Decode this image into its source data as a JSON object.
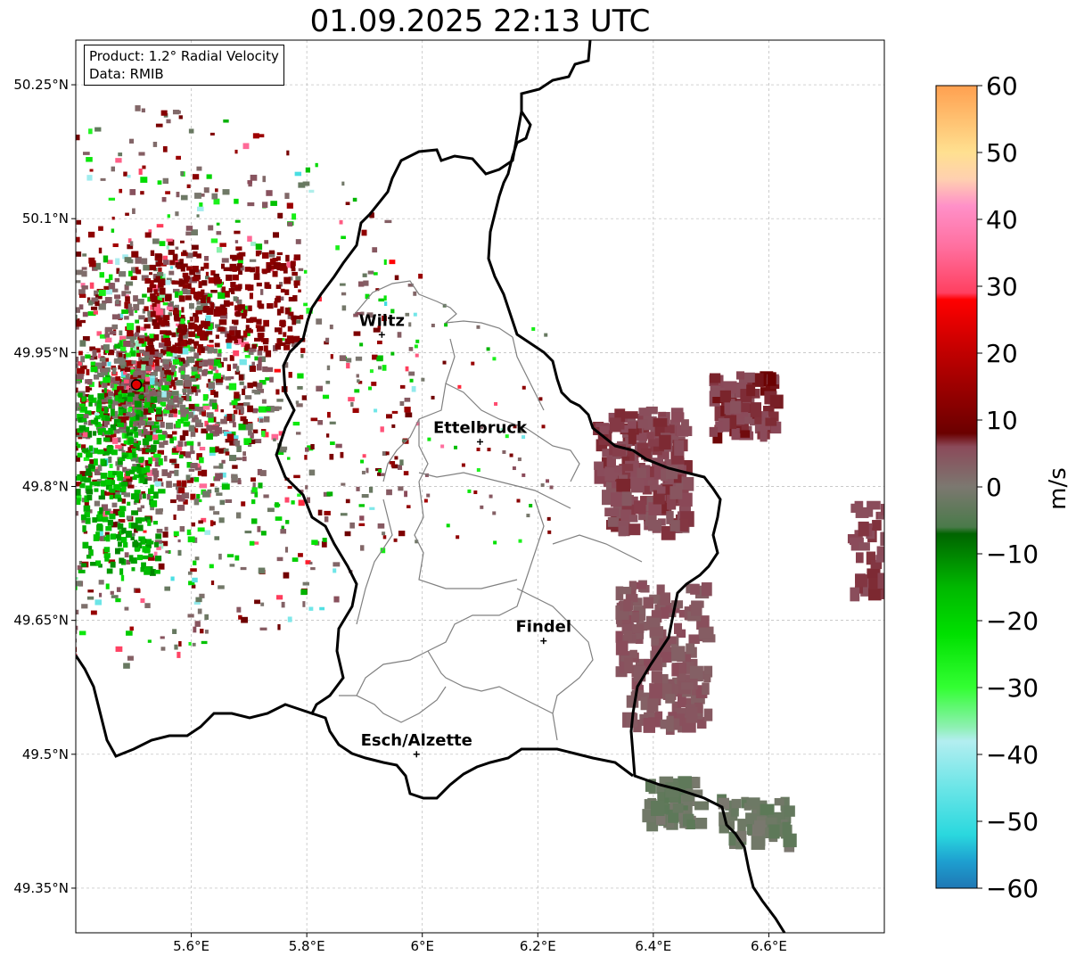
{
  "title": "01.09.2025 22:13 UTC",
  "info": {
    "product": "Product: 1.2° Radial Velocity",
    "data": "Data: RMIB"
  },
  "map": {
    "lon_range": [
      5.4,
      6.8
    ],
    "lat_range": [
      49.3,
      50.3
    ],
    "lon_ticks": [
      {
        "value": 5.6,
        "label": "5.6°E"
      },
      {
        "value": 5.8,
        "label": "5.8°E"
      },
      {
        "value": 6.0,
        "label": "6°E"
      },
      {
        "value": 6.2,
        "label": "6.2°E"
      },
      {
        "value": 6.4,
        "label": "6.4°E"
      },
      {
        "value": 6.6,
        "label": "6.6°E"
      }
    ],
    "lat_ticks": [
      {
        "value": 50.25,
        "label": "50.25°N"
      },
      {
        "value": 50.1,
        "label": "50.1°N"
      },
      {
        "value": 49.95,
        "label": "49.95°N"
      },
      {
        "value": 49.8,
        "label": "49.8°N"
      },
      {
        "value": 49.65,
        "label": "49.65°N"
      },
      {
        "value": 49.5,
        "label": "49.5°N"
      },
      {
        "value": 49.35,
        "label": "49.35°N"
      }
    ],
    "grid": true,
    "radar_site": {
      "lon": 5.505,
      "lat": 49.914
    },
    "cities": [
      {
        "name": "Wiltz",
        "lon": 5.93,
        "lat": 49.97
      },
      {
        "name": "Ettelbruck",
        "lon": 6.1,
        "lat": 49.85
      },
      {
        "name": "Findel",
        "lon": 6.21,
        "lat": 49.627
      },
      {
        "name": "Esch/Alzette",
        "lon": 5.99,
        "lat": 49.5
      }
    ]
  },
  "colorbar": {
    "label": "m/s",
    "vmin": -60,
    "vmax": 60,
    "ticks": [
      {
        "value": 60,
        "label": "60"
      },
      {
        "value": 50,
        "label": "50"
      },
      {
        "value": 40,
        "label": "40"
      },
      {
        "value": 30,
        "label": "30"
      },
      {
        "value": 20,
        "label": "20"
      },
      {
        "value": 10,
        "label": "10"
      },
      {
        "value": 0,
        "label": "0"
      },
      {
        "value": -10,
        "label": "−10"
      },
      {
        "value": -20,
        "label": "−20"
      },
      {
        "value": -30,
        "label": "−30"
      },
      {
        "value": -40,
        "label": "−40"
      },
      {
        "value": -50,
        "label": "−50"
      },
      {
        "value": -60,
        "label": "−60"
      }
    ],
    "stops": [
      {
        "v": -60,
        "c": "#1f77b4"
      },
      {
        "v": -56,
        "c": "#1e9fd0"
      },
      {
        "v": -52,
        "c": "#2ad8de"
      },
      {
        "v": -45,
        "c": "#6be5e7"
      },
      {
        "v": -38,
        "c": "#b3eef0"
      },
      {
        "v": -36,
        "c": "#8ff0b4"
      },
      {
        "v": -30,
        "c": "#33ff33"
      },
      {
        "v": -22,
        "c": "#00e000"
      },
      {
        "v": -15,
        "c": "#00b800"
      },
      {
        "v": -7,
        "c": "#006400"
      },
      {
        "v": -6,
        "c": "#4a7a4a"
      },
      {
        "v": 0,
        "c": "#7c7870"
      },
      {
        "v": 6,
        "c": "#8b4a5a"
      },
      {
        "v": 8,
        "c": "#6b0000"
      },
      {
        "v": 20,
        "c": "#c00000"
      },
      {
        "v": 28,
        "c": "#ff0000"
      },
      {
        "v": 29,
        "c": "#ff4060"
      },
      {
        "v": 36,
        "c": "#ff70a0"
      },
      {
        "v": 42,
        "c": "#ff90c8"
      },
      {
        "v": 46,
        "c": "#ffd0b0"
      },
      {
        "v": 50,
        "c": "#ffe090"
      },
      {
        "v": 60,
        "c": "#ffa050"
      }
    ]
  },
  "colors": {
    "border": "#000000",
    "region": "#808080",
    "grid": "#b8b8b8",
    "radar": "#e00000"
  }
}
